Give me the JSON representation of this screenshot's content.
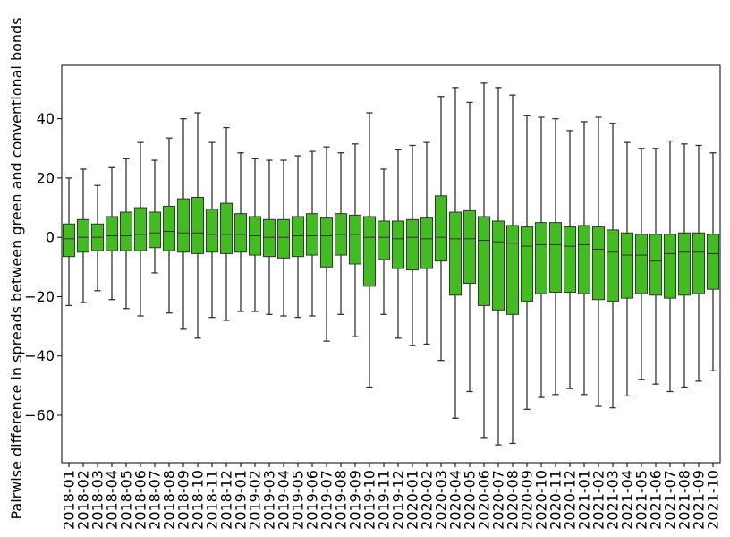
{
  "chart_data": {
    "type": "box",
    "xlabel": "",
    "ylabel": "Pairwise difference in spreads between green and conventional bonds",
    "ylim": [
      -76,
      58
    ],
    "yticks": [
      40,
      20,
      0,
      -20,
      -40,
      -60
    ],
    "grid": false,
    "box_color": "#44bb22",
    "box_edge_color": "#333333",
    "categories": [
      "2018-01",
      "2018-02",
      "2018-03",
      "2018-04",
      "2018-05",
      "2018-06",
      "2018-07",
      "2018-08",
      "2018-09",
      "2018-10",
      "2018-11",
      "2018-12",
      "2019-01",
      "2019-02",
      "2019-03",
      "2019-04",
      "2019-05",
      "2019-06",
      "2019-07",
      "2019-08",
      "2019-09",
      "2019-10",
      "2019-11",
      "2019-12",
      "2020-01",
      "2020-02",
      "2020-03",
      "2020-04",
      "2020-05",
      "2020-06",
      "2020-07",
      "2020-08",
      "2020-09",
      "2020-10",
      "2020-11",
      "2020-12",
      "2021-01",
      "2021-02",
      "2021-03",
      "2021-04",
      "2021-05",
      "2021-06",
      "2021-07",
      "2021-08",
      "2021-09",
      "2021-10"
    ],
    "boxes": [
      {
        "whislo": -23,
        "q1": -6.5,
        "med": -0.5,
        "q3": 4.5,
        "whishi": 20
      },
      {
        "whislo": -22,
        "q1": -5,
        "med": 0,
        "q3": 6,
        "whishi": 23
      },
      {
        "whislo": -18,
        "q1": -4.5,
        "med": 0,
        "q3": 4.5,
        "whishi": 17.5
      },
      {
        "whislo": -21,
        "q1": -4.5,
        "med": 0.5,
        "q3": 7,
        "whishi": 23.5
      },
      {
        "whislo": -24,
        "q1": -4.5,
        "med": 0.5,
        "q3": 8.5,
        "whishi": 26.5
      },
      {
        "whislo": -26.5,
        "q1": -4.5,
        "med": 1,
        "q3": 10,
        "whishi": 32
      },
      {
        "whislo": -12,
        "q1": -3.5,
        "med": 1.5,
        "q3": 8.5,
        "whishi": 26
      },
      {
        "whislo": -25.5,
        "q1": -4.5,
        "med": 2,
        "q3": 10.5,
        "whishi": 33.5
      },
      {
        "whislo": -31,
        "q1": -5,
        "med": 1.5,
        "q3": 13,
        "whishi": 40
      },
      {
        "whislo": -34,
        "q1": -5.5,
        "med": 1.5,
        "q3": 13.5,
        "whishi": 42
      },
      {
        "whislo": -27,
        "q1": -5,
        "med": 1,
        "q3": 9.5,
        "whishi": 32
      },
      {
        "whislo": -28,
        "q1": -5.5,
        "med": 1,
        "q3": 11.5,
        "whishi": 37
      },
      {
        "whislo": -25,
        "q1": -5,
        "med": 1,
        "q3": 8,
        "whishi": 28.5
      },
      {
        "whislo": -25,
        "q1": -6,
        "med": 0.5,
        "q3": 7,
        "whishi": 26.5
      },
      {
        "whislo": -26,
        "q1": -6.5,
        "med": 0,
        "q3": 6,
        "whishi": 26
      },
      {
        "whislo": -26.5,
        "q1": -7,
        "med": 0,
        "q3": 6,
        "whishi": 26
      },
      {
        "whislo": -27,
        "q1": -6.5,
        "med": 0.5,
        "q3": 7,
        "whishi": 27.5
      },
      {
        "whislo": -26.5,
        "q1": -6,
        "med": 0.5,
        "q3": 8,
        "whishi": 29
      },
      {
        "whislo": -35,
        "q1": -10,
        "med": 0.5,
        "q3": 6.5,
        "whishi": 30.5
      },
      {
        "whislo": -26,
        "q1": -6,
        "med": 1,
        "q3": 8,
        "whishi": 28.5
      },
      {
        "whislo": -33.5,
        "q1": -9,
        "med": 1,
        "q3": 7.5,
        "whishi": 31.5
      },
      {
        "whislo": -50.5,
        "q1": -16.5,
        "med": 0,
        "q3": 7,
        "whishi": 42
      },
      {
        "whislo": -26,
        "q1": -7.5,
        "med": 0,
        "q3": 5.5,
        "whishi": 23
      },
      {
        "whislo": -34,
        "q1": -10.5,
        "med": -0.5,
        "q3": 5.5,
        "whishi": 29.5
      },
      {
        "whislo": -36.5,
        "q1": -11,
        "med": 0,
        "q3": 6,
        "whishi": 31
      },
      {
        "whislo": -36,
        "q1": -10.5,
        "med": -0.5,
        "q3": 6.5,
        "whishi": 32
      },
      {
        "whislo": -41.5,
        "q1": -8,
        "med": 0,
        "q3": 14,
        "whishi": 47.5
      },
      {
        "whislo": -61,
        "q1": -19.5,
        "med": -0.5,
        "q3": 8.5,
        "whishi": 50.5
      },
      {
        "whislo": -52,
        "q1": -15.5,
        "med": -0.5,
        "q3": 9,
        "whishi": 45.5
      },
      {
        "whislo": -67.5,
        "q1": -23,
        "med": -1,
        "q3": 7,
        "whishi": 52
      },
      {
        "whislo": -70,
        "q1": -24.5,
        "med": -1.5,
        "q3": 5.5,
        "whishi": 50.5
      },
      {
        "whislo": -69.5,
        "q1": -26,
        "med": -2,
        "q3": 4,
        "whishi": 48
      },
      {
        "whislo": -58,
        "q1": -21.5,
        "med": -3,
        "q3": 3.5,
        "whishi": 41
      },
      {
        "whislo": -54,
        "q1": -19,
        "med": -2.5,
        "q3": 5,
        "whishi": 40.5
      },
      {
        "whislo": -53,
        "q1": -18.5,
        "med": -2.5,
        "q3": 5,
        "whishi": 40
      },
      {
        "whislo": -51,
        "q1": -18.5,
        "med": -3,
        "q3": 3.5,
        "whishi": 36
      },
      {
        "whislo": -53,
        "q1": -19,
        "med": -2.5,
        "q3": 4,
        "whishi": 39
      },
      {
        "whislo": -57,
        "q1": -21,
        "med": -4,
        "q3": 3.5,
        "whishi": 40.5
      },
      {
        "whislo": -57.5,
        "q1": -21.5,
        "med": -5,
        "q3": 2.5,
        "whishi": 38.5
      },
      {
        "whislo": -53.5,
        "q1": -20.5,
        "med": -6,
        "q3": 1.5,
        "whishi": 32
      },
      {
        "whislo": -48,
        "q1": -19,
        "med": -6,
        "q3": 1,
        "whishi": 30
      },
      {
        "whislo": -49.5,
        "q1": -19.5,
        "med": -8,
        "q3": 1,
        "whishi": 30
      },
      {
        "whislo": -52,
        "q1": -20.5,
        "med": -5.5,
        "q3": 1,
        "whishi": 32.5
      },
      {
        "whislo": -50.5,
        "q1": -19.5,
        "med": -5,
        "q3": 1.5,
        "whishi": 31.5
      },
      {
        "whislo": -48.5,
        "q1": -19,
        "med": -5,
        "q3": 1.5,
        "whishi": 31
      },
      {
        "whislo": -45,
        "q1": -17.5,
        "med": -5.5,
        "q3": 1,
        "whishi": 28.5
      }
    ]
  }
}
